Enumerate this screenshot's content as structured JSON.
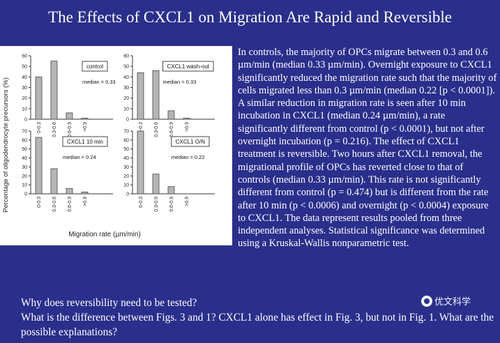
{
  "slide": {
    "title": "The Effects of CXCL1 on Migration Are Rapid and Reversible",
    "caption": "In controls, the majority of OPCs migrate between 0.3 and 0.6 µm/min (median 0.33 µm/min). Overnight exposure to CXCL1 significantly reduced the migration rate such that the majority of cells migrated less than 0.3 µm/min (median 0.22 [p < 0.0001]). A similar reduction in migration rate is seen after 10 min incubation in CXCL1 (median 0.24 µm/min), a rate significantly different from control (p < 0.0001), but not after overnight incubation (p = 0.216). The effect of CXCL1 treatment is reversible. Two hours after CXCL1 removal, the migrational profile of OPCs has reverted close to that of controls (median 0.33 µm/min). This rate is not significantly different from control (p = 0.474) but is different from the rate after 10 min (p < 0.0006) and overnight (p < 0.0004) exposure to CXCL1. The data represent results pooled from three independent analyses. Statistical significance was determined using a Kruskal-Wallis nonparametric test.",
    "question_1": "Why does reversibility need to be tested?",
    "question_2": "What is the difference between Figs. 3 and 1? CXCL1 alone has effect in Fig. 3, but not in Fig. 1. What are the possible explanations?",
    "watermark": "优文科学"
  },
  "chart_data": [
    {
      "type": "bar",
      "legend": "control",
      "annotation": "median = 0.33",
      "categories": [
        "0-0.3",
        "0.3-0.6",
        "0.6-0.9",
        ">0.9"
      ],
      "values": [
        40,
        55,
        6,
        1
      ],
      "ylim": [
        0,
        60
      ],
      "yticks": [
        "0",
        "10",
        "20",
        "30",
        "40",
        "50",
        "60"
      ]
    },
    {
      "type": "bar",
      "legend": "CXCL1 wash-out",
      "annotation": "median = 0.33",
      "categories": [
        "0-0.3",
        "0.3-0.6",
        "0.6-0.9",
        ">0.9"
      ],
      "values": [
        44,
        46,
        8,
        1
      ],
      "ylim": [
        0,
        60
      ],
      "yticks": [
        "0",
        "10",
        "20",
        "30",
        "40",
        "50",
        "60"
      ]
    },
    {
      "type": "bar",
      "legend": "CXCL1 10 min",
      "annotation": "median = 0.24",
      "categories": [
        "0-0.3",
        "0.3-0.6",
        "0.6-0.9",
        ">0.9"
      ],
      "values": [
        63,
        28,
        6,
        2
      ],
      "ylim": [
        0,
        70
      ],
      "yticks": [
        "0",
        "10",
        "20",
        "30",
        "40",
        "50",
        "60",
        "70"
      ]
    },
    {
      "type": "bar",
      "legend": "CXCL1 O/N",
      "annotation": "median = 0.22",
      "categories": [
        "0-0.3",
        "0.3-0.6",
        "0.6-0.9",
        ">0.9"
      ],
      "values": [
        70,
        22,
        8,
        0
      ],
      "ylim": [
        0,
        70
      ],
      "yticks": [
        "0",
        "10",
        "20",
        "30",
        "40",
        "50",
        "60",
        "70"
      ]
    }
  ],
  "axes": {
    "ylabel": "Percentage of oligodendrocyte precursors (%)",
    "xlabel": "Migration rate (µm/min)"
  }
}
